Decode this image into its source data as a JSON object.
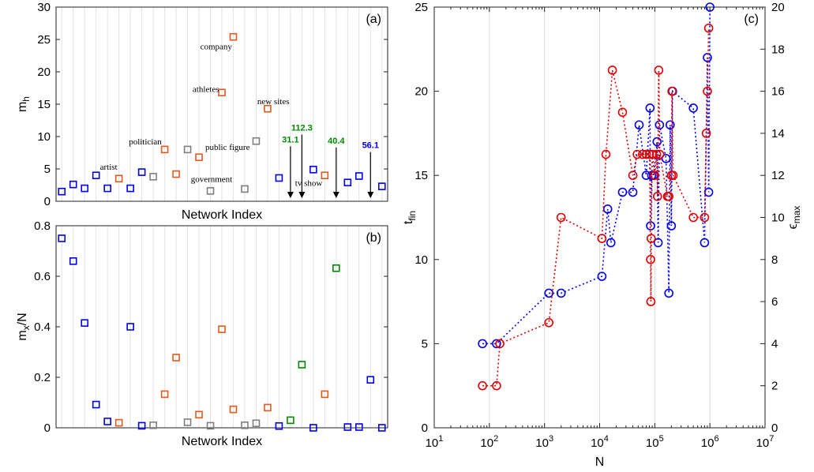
{
  "chart_data": [
    {
      "id": "a",
      "type": "scatter",
      "panel_label": "(a)",
      "xlabel": "Network Index",
      "ylabel": "m_h",
      "ylim": [
        0,
        30
      ],
      "yticks": [
        0,
        5,
        10,
        15,
        20,
        25,
        30
      ],
      "xlim": [
        0.5,
        29.5
      ],
      "grid": "vertical",
      "colors": {
        "blue": "#0000ee",
        "orange": "#e05a1e",
        "gray": "#7f7f7f",
        "green": "#008800"
      },
      "points": [
        {
          "x": 1,
          "y": 1.5,
          "c": "blue"
        },
        {
          "x": 2,
          "y": 2.6,
          "c": "blue"
        },
        {
          "x": 3,
          "y": 2.0,
          "c": "blue"
        },
        {
          "x": 4,
          "y": 4.0,
          "c": "blue"
        },
        {
          "x": 5,
          "y": 2.0,
          "c": "blue"
        },
        {
          "x": 6,
          "y": 3.5,
          "c": "orange"
        },
        {
          "x": 7,
          "y": 2.0,
          "c": "blue"
        },
        {
          "x": 8,
          "y": 4.5,
          "c": "blue"
        },
        {
          "x": 9,
          "y": 3.8,
          "c": "gray"
        },
        {
          "x": 10,
          "y": 8.0,
          "c": "orange"
        },
        {
          "x": 11,
          "y": 4.2,
          "c": "orange"
        },
        {
          "x": 12,
          "y": 8.0,
          "c": "gray"
        },
        {
          "x": 13,
          "y": 6.8,
          "c": "orange"
        },
        {
          "x": 14,
          "y": 1.6,
          "c": "gray"
        },
        {
          "x": 15,
          "y": 16.8,
          "c": "orange"
        },
        {
          "x": 16,
          "y": 25.4,
          "c": "orange"
        },
        {
          "x": 17,
          "y": 1.9,
          "c": "gray"
        },
        {
          "x": 18,
          "y": 9.3,
          "c": "gray"
        },
        {
          "x": 19,
          "y": 14.3,
          "c": "orange"
        },
        {
          "x": 20,
          "y": 3.6,
          "c": "blue"
        },
        {
          "x": 23,
          "y": 4.9,
          "c": "blue"
        },
        {
          "x": 24,
          "y": 4.0,
          "c": "orange"
        },
        {
          "x": 26,
          "y": 2.9,
          "c": "blue"
        },
        {
          "x": 27,
          "y": 3.9,
          "c": "blue"
        },
        {
          "x": 29,
          "y": 2.3,
          "c": "blue"
        }
      ],
      "arrows": [
        {
          "x": 21,
          "y_top": 8.5,
          "label": "31.1",
          "c": "green"
        },
        {
          "x": 22,
          "y_top": 10.3,
          "label": "112.3",
          "c": "green"
        },
        {
          "x": 25,
          "y_top": 8.3,
          "label": "40.4",
          "c": "green"
        },
        {
          "x": 28,
          "y_top": 7.6,
          "label": "56.1",
          "c": "blue"
        }
      ],
      "annotations": [
        {
          "text": "company",
          "x": 14.5,
          "y": 23.5
        },
        {
          "text": "athletes",
          "x": 13.6,
          "y": 16.9
        },
        {
          "text": "new sites",
          "x": 19.5,
          "y": 15.0
        },
        {
          "text": "politician",
          "x": 8.3,
          "y": 8.8
        },
        {
          "text": "public figure",
          "x": 15.5,
          "y": 7.9
        },
        {
          "text": "artist",
          "x": 5.1,
          "y": 4.9
        },
        {
          "text": "government",
          "x": 14.1,
          "y": 3.0
        },
        {
          "text": "tv show",
          "x": 22.6,
          "y": 2.4
        }
      ]
    },
    {
      "id": "b",
      "type": "scatter",
      "panel_label": "(b)",
      "xlabel": "Network Index",
      "ylabel": "m_x/N",
      "ylim": [
        0,
        0.8
      ],
      "yticks": [
        0,
        0.2,
        0.4,
        0.6,
        0.8
      ],
      "xlim": [
        0.5,
        29.5
      ],
      "grid": "vertical",
      "points": [
        {
          "x": 1,
          "y": 0.75,
          "c": "blue"
        },
        {
          "x": 2,
          "y": 0.66,
          "c": "blue"
        },
        {
          "x": 3,
          "y": 0.415,
          "c": "blue"
        },
        {
          "x": 4,
          "y": 0.092,
          "c": "blue"
        },
        {
          "x": 5,
          "y": 0.025,
          "c": "blue"
        },
        {
          "x": 6,
          "y": 0.02,
          "c": "orange"
        },
        {
          "x": 7,
          "y": 0.4,
          "c": "blue"
        },
        {
          "x": 8,
          "y": 0.008,
          "c": "blue"
        },
        {
          "x": 9,
          "y": 0.01,
          "c": "gray"
        },
        {
          "x": 10,
          "y": 0.133,
          "c": "orange"
        },
        {
          "x": 11,
          "y": 0.278,
          "c": "orange"
        },
        {
          "x": 12,
          "y": 0.022,
          "c": "gray"
        },
        {
          "x": 13,
          "y": 0.052,
          "c": "orange"
        },
        {
          "x": 14,
          "y": 0.008,
          "c": "gray"
        },
        {
          "x": 15,
          "y": 0.39,
          "c": "orange"
        },
        {
          "x": 16,
          "y": 0.073,
          "c": "orange"
        },
        {
          "x": 17,
          "y": 0.01,
          "c": "gray"
        },
        {
          "x": 18,
          "y": 0.018,
          "c": "gray"
        },
        {
          "x": 19,
          "y": 0.08,
          "c": "orange"
        },
        {
          "x": 20,
          "y": 0.007,
          "c": "blue"
        },
        {
          "x": 21,
          "y": 0.03,
          "c": "green"
        },
        {
          "x": 22,
          "y": 0.25,
          "c": "green"
        },
        {
          "x": 23,
          "y": 0.0,
          "c": "blue"
        },
        {
          "x": 24,
          "y": 0.133,
          "c": "orange"
        },
        {
          "x": 25,
          "y": 0.632,
          "c": "green"
        },
        {
          "x": 26,
          "y": 0.003,
          "c": "blue"
        },
        {
          "x": 27,
          "y": 0.003,
          "c": "blue"
        },
        {
          "x": 28,
          "y": 0.19,
          "c": "blue"
        },
        {
          "x": 29,
          "y": 0.0,
          "c": "blue"
        }
      ]
    },
    {
      "id": "c",
      "type": "line",
      "panel_label": "(c)",
      "xlabel": "N",
      "ylabel_left": "t_fin",
      "ylabel_right": "ϵ_max",
      "xscale": "log",
      "xlim": [
        10,
        10000000
      ],
      "xtick_exponents": [
        1,
        2,
        3,
        4,
        5,
        6,
        7
      ],
      "ylim_left": [
        0,
        25
      ],
      "yticks_left": [
        0,
        5,
        10,
        15,
        20,
        25
      ],
      "ylim_right": [
        0,
        20
      ],
      "yticks_right": [
        0,
        2,
        4,
        6,
        8,
        10,
        12,
        14,
        16,
        18,
        20
      ],
      "grid": "vertical",
      "series": [
        {
          "axis": "left",
          "color": "#0000ee",
          "points": [
            [
              75,
              5
            ],
            [
              135,
              5
            ],
            [
              1200,
              8
            ],
            [
              2000,
              8
            ],
            [
              11000,
              9
            ],
            [
              14000,
              13
            ],
            [
              16000,
              11
            ],
            [
              26000,
              14
            ],
            [
              40000,
              14
            ],
            [
              52000,
              18
            ],
            [
              70000,
              15
            ],
            [
              82000,
              19
            ],
            [
              84000,
              12
            ],
            [
              88000,
              15
            ],
            [
              95000,
              15
            ],
            [
              110000,
              17
            ],
            [
              115000,
              11
            ],
            [
              122000,
              18
            ],
            [
              160000,
              16
            ],
            [
              180000,
              8
            ],
            [
              190000,
              18
            ],
            [
              200000,
              12
            ],
            [
              210000,
              20
            ],
            [
              500000,
              19
            ],
            [
              800000,
              11
            ],
            [
              900000,
              22
            ],
            [
              950000,
              14
            ],
            [
              1000000,
              25
            ]
          ]
        },
        {
          "axis": "right",
          "color": "#e00000",
          "points": [
            [
              75,
              2
            ],
            [
              135,
              2
            ],
            [
              155,
              4
            ],
            [
              1200,
              5
            ],
            [
              2000,
              10
            ],
            [
              11000,
              9
            ],
            [
              13000,
              13
            ],
            [
              17000,
              17
            ],
            [
              26000,
              15
            ],
            [
              40000,
              12
            ],
            [
              48000,
              13
            ],
            [
              60000,
              13
            ],
            [
              70000,
              13
            ],
            [
              80000,
              13
            ],
            [
              84000,
              8
            ],
            [
              85000,
              6
            ],
            [
              86000,
              9
            ],
            [
              90000,
              13
            ],
            [
              100000,
              12
            ],
            [
              108000,
              13
            ],
            [
              112000,
              11
            ],
            [
              118000,
              17
            ],
            [
              123000,
              13
            ],
            [
              170000,
              11
            ],
            [
              180000,
              11
            ],
            [
              200000,
              12
            ],
            [
              205000,
              16
            ],
            [
              215000,
              12
            ],
            [
              500000,
              10
            ],
            [
              800000,
              10
            ],
            [
              860000,
              14
            ],
            [
              900000,
              16
            ],
            [
              950000,
              19
            ]
          ]
        }
      ]
    }
  ]
}
